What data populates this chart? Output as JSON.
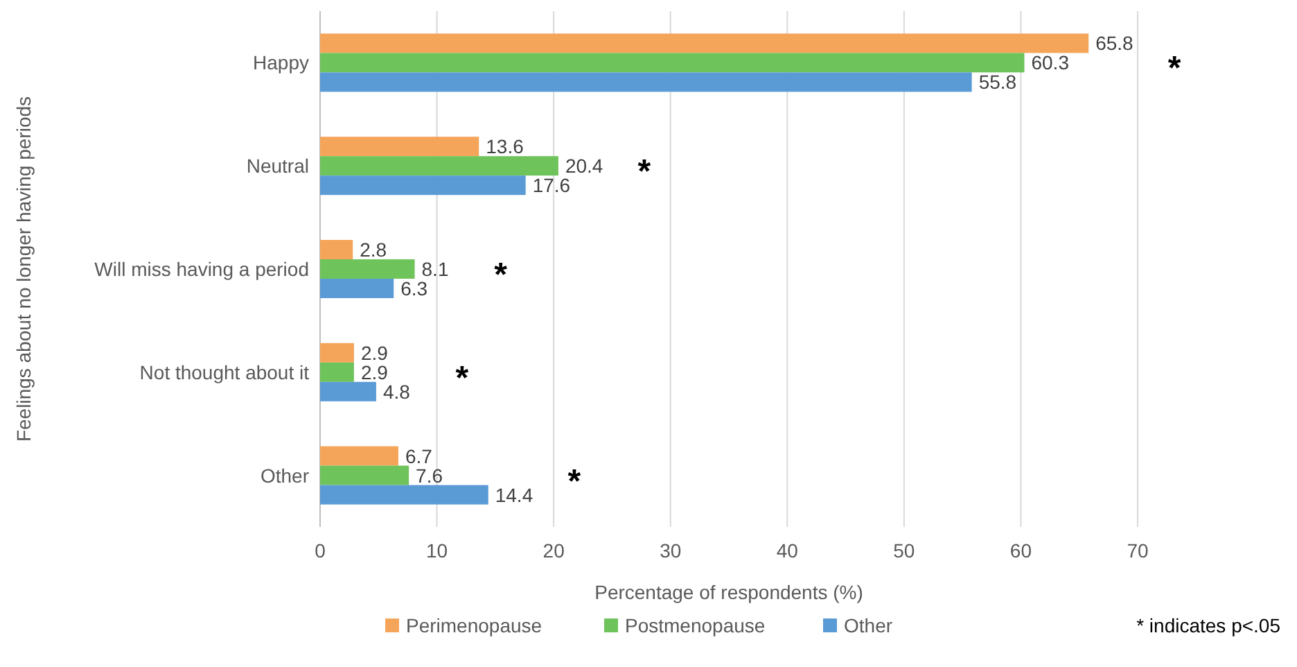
{
  "chart_data": {
    "type": "bar",
    "orientation": "horizontal",
    "ylabel": "Feelings about no longer having periods",
    "xlabel": "Percentage of respondents (%)",
    "categories": [
      "Happy",
      "Neutral",
      "Will miss having a period",
      "Not thought about it",
      "Other"
    ],
    "series": [
      {
        "name": "Perimenopause",
        "color": "#f5a55a",
        "values": [
          65.8,
          13.6,
          2.8,
          2.9,
          6.7
        ]
      },
      {
        "name": "Postmenopause",
        "color": "#6fc35b",
        "values": [
          60.3,
          20.4,
          8.1,
          2.9,
          7.6
        ]
      },
      {
        "name": "Other",
        "color": "#5b9bd5",
        "values": [
          55.8,
          17.6,
          6.3,
          4.8,
          14.4
        ]
      }
    ],
    "xlim": [
      0,
      70
    ],
    "xticks": [
      0,
      10,
      20,
      30,
      40,
      50,
      60,
      70
    ],
    "grid": "x",
    "data_labels": true,
    "legend": "bottom",
    "annotations": [
      "*",
      "*",
      "*",
      "*",
      "*",
      "* indicates p<.05"
    ]
  }
}
